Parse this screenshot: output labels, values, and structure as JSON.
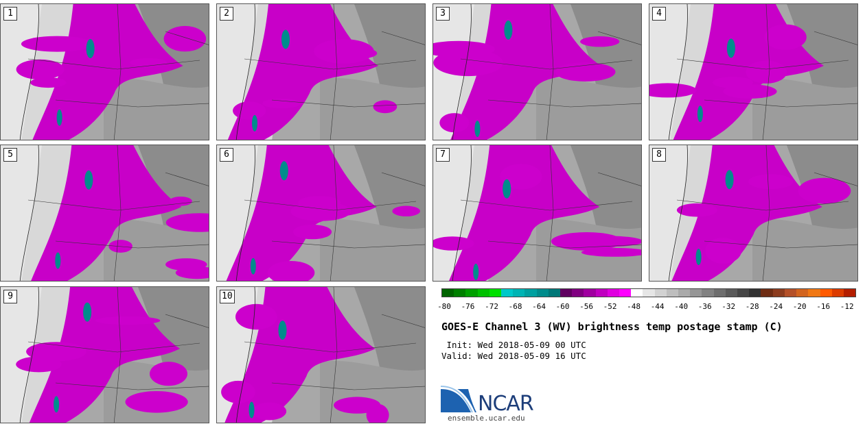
{
  "panels": [
    {
      "label": "1"
    },
    {
      "label": "2"
    },
    {
      "label": "3"
    },
    {
      "label": "4"
    },
    {
      "label": "5"
    },
    {
      "label": "6"
    },
    {
      "label": "7"
    },
    {
      "label": "8"
    },
    {
      "label": "9"
    },
    {
      "label": "10"
    }
  ],
  "colorbar": {
    "ticks": [
      "-80",
      "-76",
      "-72",
      "-68",
      "-64",
      "-60",
      "-56",
      "-52",
      "-48",
      "-44",
      "-40",
      "-36",
      "-32",
      "-28",
      "-24",
      "-20",
      "-16",
      "-12"
    ],
    "colors": [
      "#006400",
      "#008000",
      "#00a000",
      "#00c000",
      "#00e000",
      "#00c8c8",
      "#00b4b4",
      "#00a0a0",
      "#008c8c",
      "#007878",
      "#600060",
      "#800080",
      "#a000a0",
      "#c000c0",
      "#e000e0",
      "#ff00ff",
      "#ffffff",
      "#e6e6e6",
      "#d2d2d2",
      "#bebebe",
      "#aaaaaa",
      "#969696",
      "#828282",
      "#6e6e6e",
      "#5a5a5a",
      "#464646",
      "#323232",
      "#6e2d14",
      "#8c3c1e",
      "#b45028",
      "#d2641e",
      "#f07814",
      "#ff5a00",
      "#dc3c00",
      "#b41e00"
    ]
  },
  "title": "GOES-E Channel 3 (WV) brightness temp postage stamp (C)",
  "init": " Init: Wed 2018-05-09 00 UTC",
  "valid": "Valid: Wed 2018-05-09 16 UTC",
  "logo": {
    "text": "NCAR",
    "site": "ensemble.ucar.edu"
  }
}
